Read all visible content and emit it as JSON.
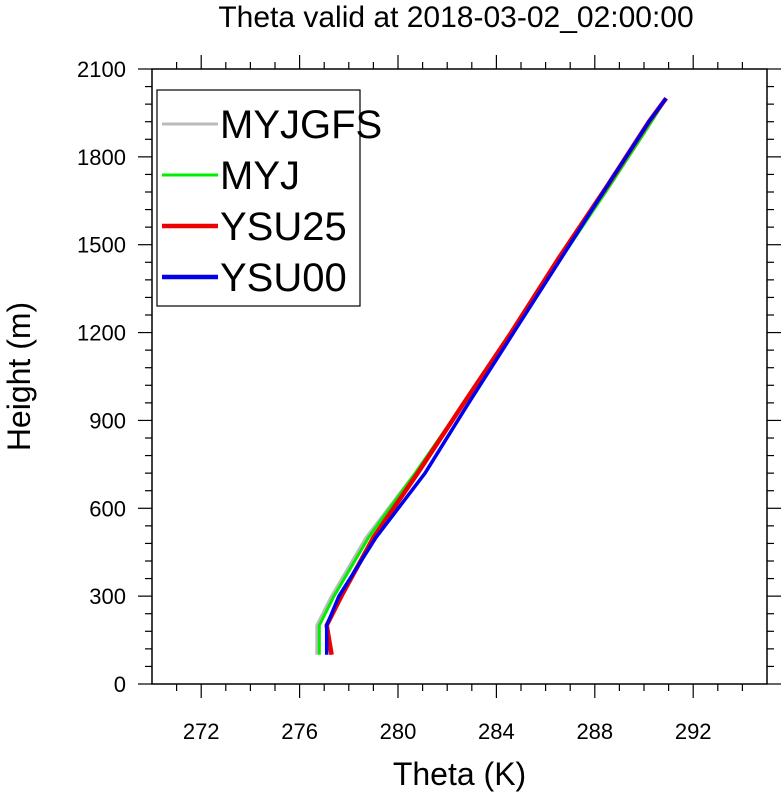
{
  "chart_data": {
    "type": "line",
    "title": "Theta valid at 2018-03-02_02:00:00",
    "xlabel": "Theta (K)",
    "ylabel": "Height (m)",
    "xlim": [
      270,
      295
    ],
    "ylim": [
      0,
      2100
    ],
    "x_ticks": [
      272,
      276,
      280,
      284,
      288,
      292
    ],
    "y_ticks": [
      0,
      300,
      600,
      900,
      1200,
      1500,
      1800,
      2100
    ],
    "legend_position": "top-left",
    "series": [
      {
        "name": "MYJGFS",
        "color": "#bbbbbb",
        "points": [
          [
            276.7,
            100
          ],
          [
            276.7,
            200
          ],
          [
            277.3,
            300
          ],
          [
            278.7,
            500
          ],
          [
            280.7,
            720
          ],
          [
            282.6,
            950
          ],
          [
            284.7,
            1200
          ],
          [
            286.6,
            1450
          ],
          [
            288.6,
            1700
          ],
          [
            290.3,
            1920
          ],
          [
            290.9,
            2000
          ]
        ]
      },
      {
        "name": "MYJ",
        "color": "#00ee00",
        "points": [
          [
            276.8,
            100
          ],
          [
            276.8,
            200
          ],
          [
            277.4,
            300
          ],
          [
            278.8,
            500
          ],
          [
            280.7,
            720
          ],
          [
            282.6,
            950
          ],
          [
            284.7,
            1200
          ],
          [
            286.6,
            1450
          ],
          [
            288.6,
            1700
          ],
          [
            290.3,
            1920
          ],
          [
            290.9,
            2000
          ]
        ]
      },
      {
        "name": "YSU25",
        "color": "#ee0000",
        "points": [
          [
            277.3,
            100
          ],
          [
            277.1,
            200
          ],
          [
            277.7,
            300
          ],
          [
            279.0,
            500
          ],
          [
            280.8,
            720
          ],
          [
            282.6,
            950
          ],
          [
            284.6,
            1200
          ],
          [
            286.5,
            1450
          ],
          [
            288.5,
            1700
          ],
          [
            290.2,
            1920
          ],
          [
            290.9,
            2000
          ]
        ]
      },
      {
        "name": "YSU00",
        "color": "#0000ee",
        "points": [
          [
            277.1,
            100
          ],
          [
            277.1,
            200
          ],
          [
            277.6,
            300
          ],
          [
            279.1,
            500
          ],
          [
            281.1,
            720
          ],
          [
            282.8,
            950
          ],
          [
            284.7,
            1200
          ],
          [
            286.6,
            1450
          ],
          [
            288.5,
            1700
          ],
          [
            290.2,
            1920
          ],
          [
            290.9,
            2000
          ]
        ]
      }
    ]
  }
}
